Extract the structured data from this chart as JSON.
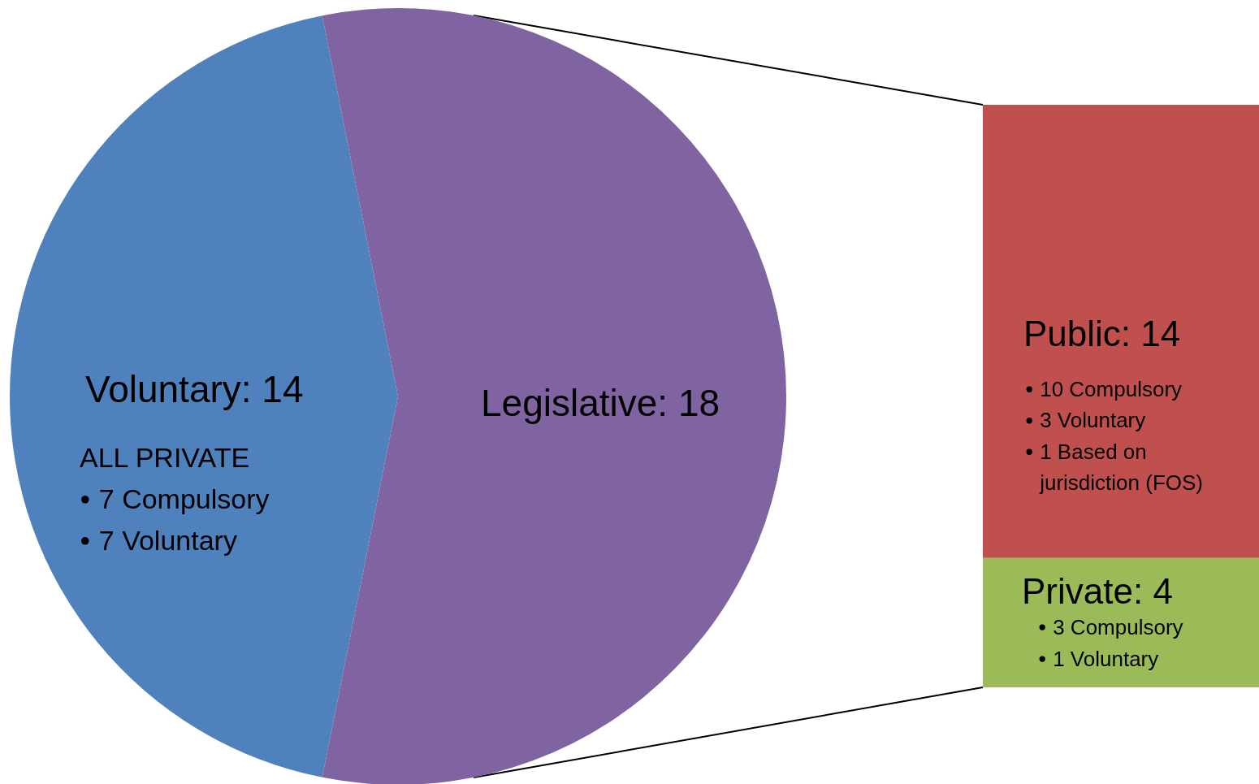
{
  "chart_data": [
    {
      "type": "pie",
      "categories": [
        null,
        null
      ],
      "values": [
        14,
        18
      ],
      "colors": [
        "#4f81bd",
        "#8064a2"
      ],
      "value_labels": [
        "Voluntary: 14",
        "Legislative: 18"
      ],
      "annotations": [
        "ALL PRIVATE",
        "7 Compulsory",
        "7 Voluntary"
      ]
    },
    {
      "type": "bar",
      "stacked": true,
      "categories": [
        null
      ],
      "series": [
        {
          "color": "#9bbb59",
          "values": [
            4
          ],
          "value_labels": [
            "Private: 4"
          ]
        },
        {
          "color": "#c0504d",
          "values": [
            14
          ],
          "value_labels": [
            "Public: 14"
          ]
        }
      ],
      "annotations": [
        "10 Compulsory",
        "3 Voluntary",
        "1 Based on jurisdiction (FOS)",
        "3 Compulsory",
        "1 Voluntary"
      ]
    }
  ]
}
